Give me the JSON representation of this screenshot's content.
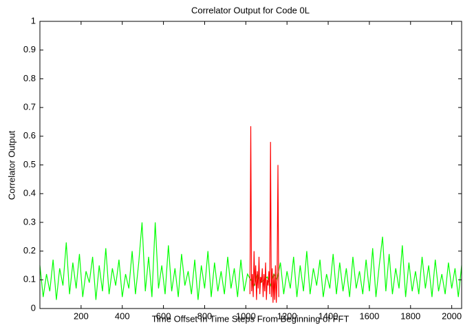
{
  "chart_data": {
    "type": "line",
    "title": "Correlator Output for Code   0L",
    "xlabel": "Time Offset In Time Steps From Beginning of FFT",
    "ylabel": "Correlator Output",
    "xlim": [
      0,
      2048
    ],
    "ylim": [
      0,
      1
    ],
    "xticks": [
      200,
      400,
      600,
      800,
      1000,
      1200,
      1400,
      1600,
      1800,
      2000
    ],
    "yticks": [
      0,
      0.1,
      0.2,
      0.3,
      0.4,
      0.5,
      0.6,
      0.7,
      0.8,
      0.9,
      1
    ],
    "series": [
      {
        "color": "#00ff00",
        "x": [
          0,
          16,
          32,
          48,
          64,
          80,
          96,
          112,
          128,
          144,
          160,
          176,
          192,
          208,
          224,
          240,
          256,
          272,
          288,
          304,
          320,
          336,
          352,
          368,
          384,
          400,
          416,
          432,
          448,
          464,
          480,
          496,
          512,
          528,
          544,
          560,
          576,
          592,
          608,
          624,
          640,
          656,
          672,
          688,
          704,
          720,
          736,
          752,
          768,
          784,
          800,
          816,
          832,
          848,
          864,
          880,
          896,
          912,
          928,
          944,
          960,
          976,
          992,
          1008,
          1024,
          1040,
          1056,
          1072,
          1088,
          1104,
          1120,
          1136,
          1152,
          1168,
          1184,
          1200,
          1216,
          1232,
          1248,
          1264,
          1280,
          1296,
          1312,
          1328,
          1344,
          1360,
          1376,
          1392,
          1408,
          1424,
          1440,
          1456,
          1472,
          1488,
          1504,
          1520,
          1536,
          1552,
          1568,
          1584,
          1600,
          1616,
          1632,
          1648,
          1664,
          1680,
          1696,
          1712,
          1728,
          1744,
          1760,
          1776,
          1792,
          1808,
          1824,
          1840,
          1856,
          1872,
          1888,
          1904,
          1920,
          1936,
          1952,
          1968,
          1984,
          2000,
          2016,
          2032,
          2048
        ],
        "values": [
          0.15,
          0.04,
          0.12,
          0.06,
          0.17,
          0.03,
          0.14,
          0.08,
          0.23,
          0.05,
          0.16,
          0.07,
          0.19,
          0.04,
          0.13,
          0.09,
          0.18,
          0.03,
          0.15,
          0.06,
          0.21,
          0.05,
          0.14,
          0.08,
          0.17,
          0.04,
          0.12,
          0.07,
          0.2,
          0.05,
          0.16,
          0.3,
          0.06,
          0.18,
          0.04,
          0.3,
          0.07,
          0.15,
          0.05,
          0.22,
          0.06,
          0.14,
          0.04,
          0.19,
          0.08,
          0.13,
          0.05,
          0.17,
          0.03,
          0.15,
          0.07,
          0.2,
          0.04,
          0.16,
          0.06,
          0.13,
          0.05,
          0.18,
          0.07,
          0.14,
          0.04,
          0.17,
          0.06,
          0.12,
          0.1,
          0.08,
          0.12,
          0.09,
          0.1,
          0.11,
          0.08,
          0.12,
          0.1,
          0.16,
          0.05,
          0.13,
          0.07,
          0.18,
          0.04,
          0.15,
          0.06,
          0.2,
          0.05,
          0.14,
          0.08,
          0.17,
          0.04,
          0.12,
          0.07,
          0.19,
          0.05,
          0.16,
          0.06,
          0.14,
          0.04,
          0.18,
          0.07,
          0.13,
          0.05,
          0.17,
          0.06,
          0.21,
          0.04,
          0.15,
          0.25,
          0.06,
          0.19,
          0.05,
          0.14,
          0.07,
          0.22,
          0.04,
          0.16,
          0.06,
          0.13,
          0.05,
          0.18,
          0.07,
          0.15,
          0.04,
          0.17,
          0.06,
          0.12,
          0.05,
          0.16,
          0.07,
          0.14,
          0.04,
          0.15
        ]
      },
      {
        "color": "#ff0000",
        "x": [
          1020,
          1024,
          1028,
          1032,
          1036,
          1040,
          1044,
          1048,
          1052,
          1056,
          1060,
          1064,
          1068,
          1072,
          1076,
          1080,
          1084,
          1088,
          1092,
          1096,
          1100,
          1104,
          1108,
          1112,
          1116,
          1120,
          1124,
          1128,
          1132,
          1136,
          1140,
          1144,
          1148,
          1152,
          1156,
          1160
        ],
        "values": [
          0.05,
          0.635,
          0.06,
          0.12,
          0.04,
          0.2,
          0.08,
          0.15,
          0.03,
          0.13,
          0.07,
          0.18,
          0.05,
          0.11,
          0.09,
          0.14,
          0.04,
          0.12,
          0.06,
          0.16,
          0.03,
          0.1,
          0.08,
          0.13,
          0.05,
          0.58,
          0.04,
          0.14,
          0.02,
          0.12,
          0.03,
          0.15,
          0.02,
          0.11,
          0.5,
          0.04
        ]
      }
    ]
  }
}
